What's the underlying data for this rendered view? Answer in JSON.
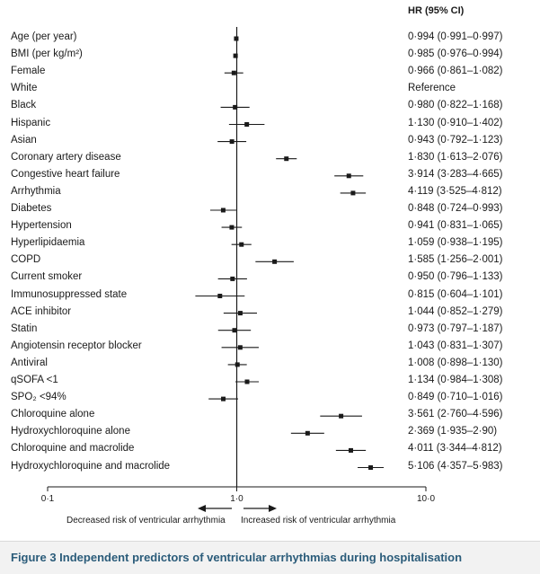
{
  "figure": {
    "header": "HR (95% CI)",
    "caption": "Figure 3 Independent predictors of ventricular arrhythmias during hospitalisation",
    "note_left": "Decreased risk of ventricular arrhythmia",
    "note_right": "Increased risk of ventricular arrhythmia"
  },
  "chart_data": {
    "type": "forest",
    "x_scale": "log",
    "xlim": [
      0.1,
      10.0
    ],
    "x_ticks": [
      {
        "value": 0.1,
        "label": "0·1"
      },
      {
        "value": 1.0,
        "label": "1·0"
      },
      {
        "value": 10.0,
        "label": "10·0"
      }
    ],
    "reference_line": 1.0,
    "rows": [
      {
        "label": "Age (per year)",
        "hr": 0.994,
        "lo": 0.991,
        "hi": 0.997,
        "text": "0·994 (0·991–0·997)"
      },
      {
        "label": "BMI (per kg/m²)",
        "hr": 0.985,
        "lo": 0.976,
        "hi": 0.994,
        "text": "0·985 (0·976–0·994)"
      },
      {
        "label": "Female",
        "hr": 0.966,
        "lo": 0.861,
        "hi": 1.082,
        "text": "0·966 (0·861–1·082)"
      },
      {
        "label": "White",
        "hr": null,
        "lo": null,
        "hi": null,
        "text": "Reference"
      },
      {
        "label": "Black",
        "hr": 0.98,
        "lo": 0.822,
        "hi": 1.168,
        "text": "0·980 (0·822–1·168)"
      },
      {
        "label": "Hispanic",
        "hr": 1.13,
        "lo": 0.91,
        "hi": 1.402,
        "text": "1·130 (0·910–1·402)"
      },
      {
        "label": "Asian",
        "hr": 0.943,
        "lo": 0.792,
        "hi": 1.123,
        "text": "0·943 (0·792–1·123)"
      },
      {
        "label": "Coronary artery disease",
        "hr": 1.83,
        "lo": 1.613,
        "hi": 2.076,
        "text": "1·830 (1·613–2·076)"
      },
      {
        "label": "Congestive heart failure",
        "hr": 3.914,
        "lo": 3.283,
        "hi": 4.665,
        "text": "3·914 (3·283–4·665)"
      },
      {
        "label": "Arrhythmia",
        "hr": 4.119,
        "lo": 3.525,
        "hi": 4.812,
        "text": "4·119 (3·525–4·812)"
      },
      {
        "label": "Diabetes",
        "hr": 0.848,
        "lo": 0.724,
        "hi": 0.993,
        "text": "0·848 (0·724–0·993)"
      },
      {
        "label": "Hypertension",
        "hr": 0.941,
        "lo": 0.831,
        "hi": 1.065,
        "text": "0·941 (0·831–1·065)"
      },
      {
        "label": "Hyperlipidaemia",
        "hr": 1.059,
        "lo": 0.938,
        "hi": 1.195,
        "text": "1·059 (0·938–1·195)"
      },
      {
        "label": "COPD",
        "hr": 1.585,
        "lo": 1.256,
        "hi": 2.001,
        "text": "1·585 (1·256–2·001)"
      },
      {
        "label": "Current smoker",
        "hr": 0.95,
        "lo": 0.796,
        "hi": 1.133,
        "text": "0·950 (0·796–1·133)"
      },
      {
        "label": "Immunosuppressed state",
        "hr": 0.815,
        "lo": 0.604,
        "hi": 1.101,
        "text": "0·815 (0·604–1·101)"
      },
      {
        "label": "ACE inhibitor",
        "hr": 1.044,
        "lo": 0.852,
        "hi": 1.279,
        "text": "1·044 (0·852–1·279)"
      },
      {
        "label": "Statin",
        "hr": 0.973,
        "lo": 0.797,
        "hi": 1.187,
        "text": "0·973 (0·797–1·187)"
      },
      {
        "label": "Angiotensin receptor blocker",
        "hr": 1.043,
        "lo": 0.831,
        "hi": 1.307,
        "text": "1·043 (0·831–1·307)"
      },
      {
        "label": "Antiviral",
        "hr": 1.008,
        "lo": 0.898,
        "hi": 1.13,
        "text": "1·008 (0·898–1·130)"
      },
      {
        "label": "qSOFA <1",
        "hr": 1.134,
        "lo": 0.984,
        "hi": 1.308,
        "text": "1·134 (0·984–1·308)"
      },
      {
        "label": "SPO₂ <94%",
        "hr": 0.849,
        "lo": 0.71,
        "hi": 1.016,
        "text": "0·849 (0·710–1·016)"
      },
      {
        "label": "Chloroquine alone",
        "hr": 3.561,
        "lo": 2.76,
        "hi": 4.596,
        "text": "3·561 (2·760–4·596)"
      },
      {
        "label": "Hydroxychloroquine alone",
        "hr": 2.369,
        "lo": 1.935,
        "hi": 2.9,
        "text": "2·369 (1·935–2·90)"
      },
      {
        "label": "Chloroquine and macrolide",
        "hr": 4.011,
        "lo": 3.344,
        "hi": 4.812,
        "text": "4·011 (3·344–4·812)"
      },
      {
        "label": "Hydroxychloroquine and macrolide",
        "hr": 5.106,
        "lo": 4.357,
        "hi": 5.983,
        "text": "5·106 (4·357–5·983)"
      }
    ]
  }
}
